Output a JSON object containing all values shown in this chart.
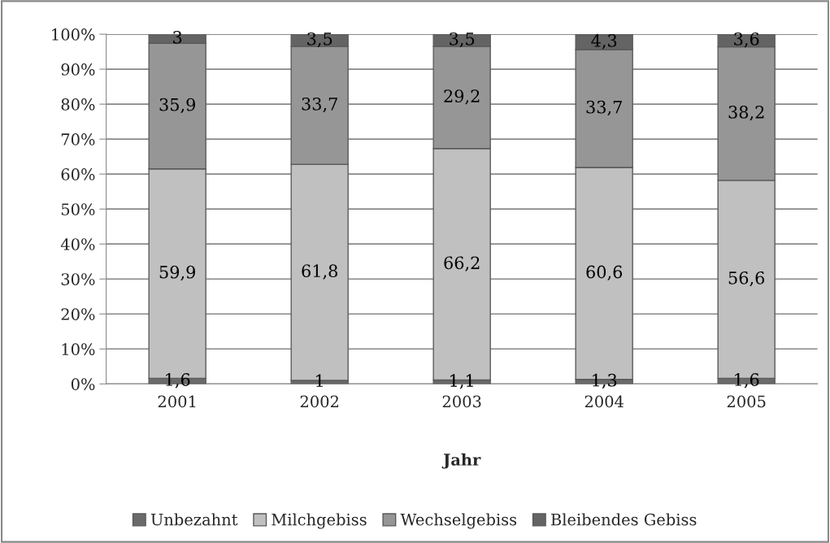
{
  "chart_data": {
    "type": "bar",
    "stacked": true,
    "xlabel": "Jahr",
    "categories": [
      "2001",
      "2002",
      "2003",
      "2004",
      "2005"
    ],
    "series": [
      {
        "name": "Unbezahnt",
        "color": "#6a6a6a",
        "values": [
          1.6,
          1,
          1.1,
          1.3,
          1.6
        ],
        "value_labels": [
          "1,6",
          "1",
          "1,1",
          "1,3",
          "1,6"
        ]
      },
      {
        "name": "Milchgebiss",
        "color": "#c0c0c0",
        "values": [
          59.9,
          61.8,
          66.2,
          60.6,
          56.6
        ],
        "value_labels": [
          "59,9",
          "61,8",
          "66,2",
          "60,6",
          "56,6"
        ]
      },
      {
        "name": "Wechselgebiss",
        "color": "#969696",
        "values": [
          35.9,
          33.7,
          29.2,
          33.7,
          38.2
        ],
        "value_labels": [
          "35,9",
          "33,7",
          "29,2",
          "33,7",
          "38,2"
        ]
      },
      {
        "name": "Bleibendes Gebiss",
        "color": "#646464",
        "values": [
          3,
          3.5,
          3.5,
          4.3,
          3.6
        ],
        "value_labels": [
          "3",
          "3,5",
          "3,5",
          "4,3",
          "3,6"
        ]
      }
    ],
    "ylim": [
      0,
      100
    ],
    "yticks": [
      {
        "value": 0,
        "label": "0%"
      },
      {
        "value": 10,
        "label": "10%"
      },
      {
        "value": 20,
        "label": "20%"
      },
      {
        "value": 30,
        "label": "30%"
      },
      {
        "value": 40,
        "label": "40%"
      },
      {
        "value": 50,
        "label": "50%"
      },
      {
        "value": 60,
        "label": "60%"
      },
      {
        "value": 70,
        "label": "70%"
      },
      {
        "value": 80,
        "label": "80%"
      },
      {
        "value": 90,
        "label": "90%"
      },
      {
        "value": 100,
        "label": "100%"
      }
    ],
    "grid": "y",
    "legend": "bottom"
  }
}
